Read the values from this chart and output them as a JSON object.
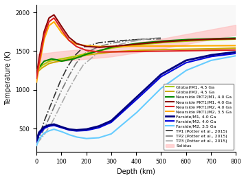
{
  "title": "",
  "xlabel": "Depth (km)",
  "ylabel": "Temperature (K)",
  "xlim": [
    0,
    800
  ],
  "ylim": [
    200,
    2100
  ],
  "yticks": [
    500,
    1000,
    1500,
    2000
  ],
  "xticks": [
    0,
    100,
    200,
    300,
    400,
    500,
    600,
    700,
    800
  ],
  "legend_entries": [
    {
      "label": "Global/M1, 4.5 Ga",
      "color": "#aacc00",
      "lw": 1.5,
      "ls": "-"
    },
    {
      "label": "Global/M2, 4.5 Ga",
      "color": "#ccaa00",
      "lw": 1.5,
      "ls": "-"
    },
    {
      "label": "Nearside PKT2/M1, 4.0 Ga",
      "color": "#008800",
      "lw": 1.5,
      "ls": "-"
    },
    {
      "label": "Nearside PKT1/M1, 4.0 Ga",
      "color": "#880000",
      "lw": 1.5,
      "ls": "-"
    },
    {
      "label": "Nearside PKT1/M2, 4.0 Ga",
      "color": "#dd2222",
      "lw": 1.5,
      "ls": "-"
    },
    {
      "label": "Nearside PKT1/M2, 3.5 Ga",
      "color": "#ffaa00",
      "lw": 1.5,
      "ls": "-"
    },
    {
      "label": "Farside/M1, 4.0 Ga",
      "color": "#000080",
      "lw": 2.0,
      "ls": "-"
    },
    {
      "label": "Farside/M2, 4.0 Ga",
      "color": "#0000dd",
      "lw": 1.5,
      "ls": "-"
    },
    {
      "label": "Farside/M2, 3.5 Ga",
      "color": "#66ccff",
      "lw": 1.5,
      "ls": "-"
    },
    {
      "label": "TP1 (Potter et al., 2015)",
      "color": "#333333",
      "lw": 1.2,
      "ls": "-."
    },
    {
      "label": "TP2 (Potter et al., 2015)",
      "color": "#777777",
      "lw": 1.2,
      "ls": "-."
    },
    {
      "label": "TP3 (Potter et al., 2015)",
      "color": "#aaaaaa",
      "lw": 1.2,
      "ls": "-."
    },
    {
      "label": "Solidus",
      "color": "#ffbbbb",
      "lw": 8,
      "ls": "-"
    }
  ],
  "background_color": "#f8f8f8"
}
